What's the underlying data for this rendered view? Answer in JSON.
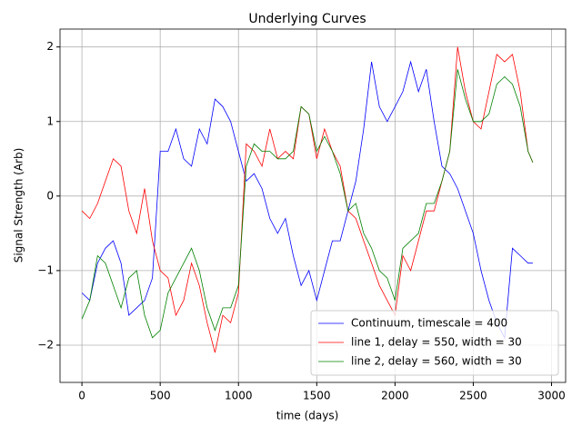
{
  "chart_data": {
    "type": "line",
    "title": "Underlying Curves",
    "xlabel": "time (days)",
    "ylabel": "Signal Strength (Arb)",
    "x": [
      0,
      50,
      100,
      150,
      200,
      250,
      300,
      350,
      400,
      450,
      500,
      550,
      600,
      650,
      700,
      750,
      800,
      850,
      900,
      950,
      1000,
      1050,
      1100,
      1150,
      1200,
      1250,
      1300,
      1350,
      1400,
      1450,
      1500,
      1550,
      1600,
      1650,
      1700,
      1750,
      1800,
      1850,
      1900,
      1950,
      2000,
      2050,
      2100,
      2150,
      2200,
      2250,
      2300,
      2350,
      2400,
      2450,
      2500,
      2550,
      2600,
      2650,
      2700,
      2750,
      2800,
      2850,
      2880
    ],
    "series": [
      {
        "name": "Continuum, timescale = 400",
        "color": "#0000ff",
        "values": [
          -1.3,
          -1.4,
          -0.9,
          -0.7,
          -0.6,
          -0.9,
          -1.6,
          -1.5,
          -1.4,
          -1.1,
          0.6,
          0.6,
          0.9,
          0.5,
          0.4,
          0.9,
          0.7,
          1.3,
          1.2,
          1.0,
          0.6,
          0.2,
          0.3,
          0.1,
          -0.3,
          -0.5,
          -0.3,
          -0.8,
          -1.2,
          -1.0,
          -1.4,
          -1.0,
          -0.6,
          -0.6,
          -0.2,
          0.2,
          0.9,
          1.8,
          1.2,
          1.0,
          1.2,
          1.4,
          1.8,
          1.4,
          1.7,
          1.0,
          0.4,
          0.3,
          0.1,
          -0.2,
          -0.5,
          -1.0,
          -1.4,
          -1.7,
          -1.9,
          -0.7,
          -0.8,
          -0.9,
          -0.9
        ]
      },
      {
        "name": "line 1, delay = 550, width = 30",
        "color": "#ff0000",
        "values": [
          -0.2,
          -0.3,
          -0.1,
          0.2,
          0.5,
          0.4,
          -0.2,
          -0.5,
          0.1,
          -0.6,
          -1.0,
          -1.1,
          -1.6,
          -1.4,
          -0.9,
          -1.2,
          -1.7,
          -2.1,
          -1.6,
          -1.7,
          -1.3,
          0.7,
          0.6,
          0.4,
          0.9,
          0.5,
          0.6,
          0.5,
          1.2,
          1.1,
          0.5,
          0.9,
          0.6,
          0.4,
          -0.2,
          -0.3,
          -0.6,
          -0.9,
          -1.2,
          -1.4,
          -1.6,
          -0.8,
          -1.0,
          -0.6,
          -0.2,
          -0.2,
          0.2,
          0.6,
          2.0,
          1.4,
          1.0,
          0.9,
          1.4,
          1.9,
          1.8,
          1.9,
          1.4,
          0.6,
          0.45
        ]
      },
      {
        "name": "line 2, delay = 560, width = 30",
        "color": "#008000",
        "values": [
          -1.65,
          -1.4,
          -0.8,
          -0.9,
          -1.2,
          -1.5,
          -1.1,
          -1.0,
          -1.6,
          -1.9,
          -1.8,
          -1.3,
          -1.1,
          -0.9,
          -0.7,
          -1.0,
          -1.5,
          -1.8,
          -1.5,
          -1.5,
          -1.2,
          0.4,
          0.7,
          0.6,
          0.6,
          0.5,
          0.5,
          0.6,
          1.2,
          1.1,
          0.6,
          0.8,
          0.6,
          0.3,
          -0.2,
          -0.1,
          -0.5,
          -0.7,
          -1.0,
          -1.1,
          -1.4,
          -0.7,
          -0.6,
          -0.5,
          -0.1,
          -0.1,
          0.2,
          0.6,
          1.7,
          1.3,
          1.0,
          1.0,
          1.1,
          1.5,
          1.6,
          1.5,
          1.2,
          0.6,
          0.45
        ]
      }
    ],
    "xlim": [
      -140,
      3090
    ],
    "ylim": [
      -2.5,
      2.24
    ],
    "xticks": [
      0,
      500,
      1000,
      1500,
      2000,
      2500,
      3000
    ],
    "yticks": [
      {
        "value": -2,
        "label": "−2"
      },
      {
        "value": -1,
        "label": "−1"
      },
      0,
      1,
      2
    ],
    "grid": true,
    "legend": "lower right"
  }
}
